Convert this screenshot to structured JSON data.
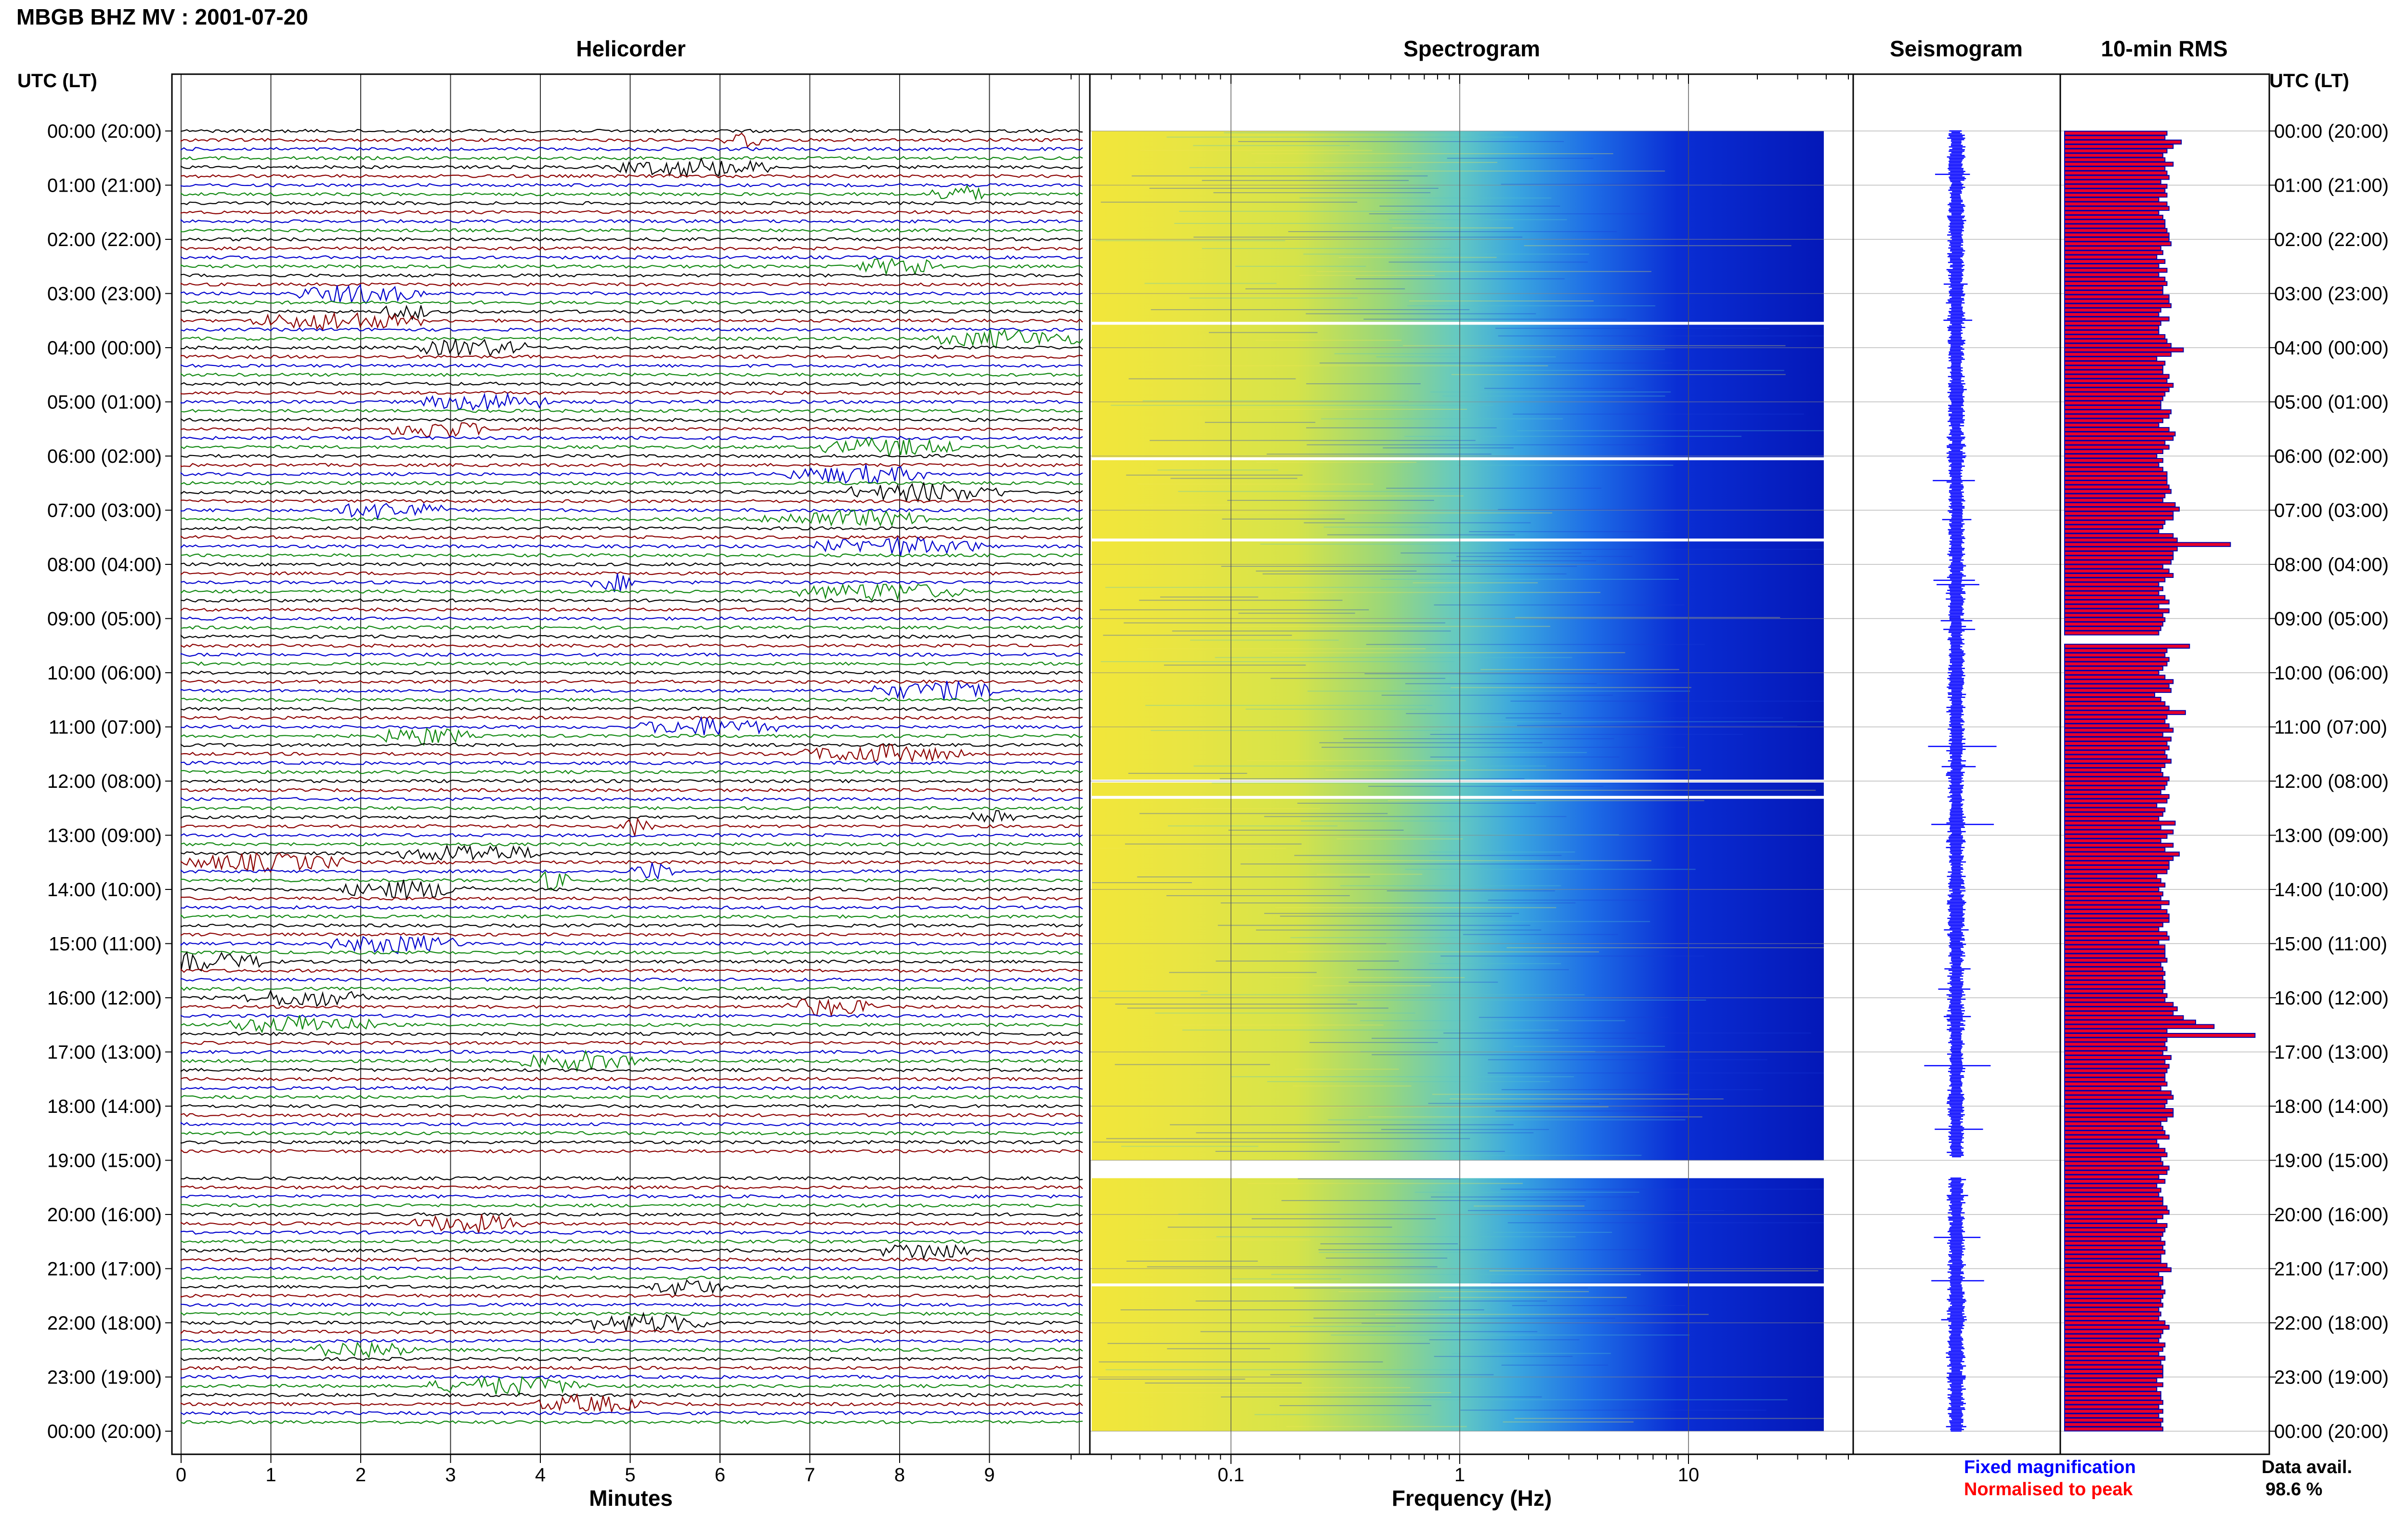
{
  "header": {
    "station_title": "MBGB BHZ MV : 2001-07-20",
    "utc_label": "UTC (LT)",
    "utc_label_right": "UTC (LT)"
  },
  "colors": {
    "trace_black": "#000000",
    "trace_red": "#8b0000",
    "trace_blue": "#0000cd",
    "trace_green": "#118811",
    "rms_bar_fill": "#e8002a",
    "rms_bar_edge": "#0000aa",
    "seismogram": "#0000ff",
    "spectrogram_low": "#f5e83a",
    "spectrogram_mid": "#5fd0c8",
    "spectrogram_high": "#0a14c8"
  },
  "chart_data": [
    {
      "type": "line",
      "panel": "helicorder",
      "title": "Helicorder",
      "xlabel": "Minutes",
      "xlim": [
        0,
        10
      ],
      "x_ticks": [
        "0",
        "1",
        "2",
        "3",
        "4",
        "5",
        "6",
        "7",
        "8",
        "9"
      ],
      "y_tick_labels": [
        "00:00 (20:00)",
        "01:00 (21:00)",
        "02:00 (22:00)",
        "03:00 (23:00)",
        "04:00 (00:00)",
        "05:00 (01:00)",
        "06:00 (02:00)",
        "07:00 (03:00)",
        "08:00 (04:00)",
        "09:00 (05:00)",
        "10:00 (06:00)",
        "11:00 (07:00)",
        "12:00 (08:00)",
        "13:00 (09:00)",
        "14:00 (10:00)",
        "15:00 (11:00)",
        "16:00 (12:00)",
        "17:00 (13:00)",
        "18:00 (14:00)",
        "19:00 (15:00)",
        "20:00 (16:00)",
        "21:00 (17:00)",
        "22:00 (18:00)",
        "23:00 (19:00)",
        "00:00 (20:00)"
      ],
      "rows_per_hour": 6,
      "row_color_cycle": [
        "black",
        "red",
        "blue",
        "green"
      ],
      "data_gap_hours": [
        [
          19.0,
          19.33
        ]
      ],
      "grid": true
    },
    {
      "type": "heatmap",
      "panel": "spectrogram",
      "title": "Spectrogram",
      "xlabel": "Frequency (Hz)",
      "x_scale": "log",
      "xlim": [
        0.02,
        50
      ],
      "x_ticks": [
        "0.1",
        "1",
        "10"
      ],
      "colormap": "yellow-cyan-blue (low to high frequency)",
      "white_gap_lines_hours": [
        3.55,
        6.05,
        7.55,
        12.0,
        12.3,
        21.3
      ],
      "grid": true
    },
    {
      "type": "line",
      "panel": "seismogram",
      "title": "Seismogram",
      "note": "Fixed magnification",
      "grid": true
    },
    {
      "type": "bar",
      "panel": "rms",
      "title": "10-min RMS",
      "orientation": "horizontal",
      "note": "Normalised to peak",
      "xlim": [
        0,
        1
      ],
      "values_relative_to_peak": [
        0.5,
        0.49,
        0.57,
        0.53,
        0.5,
        0.48,
        0.49,
        0.53,
        0.49,
        0.5,
        0.51,
        0.47,
        0.5,
        0.49,
        0.5,
        0.46,
        0.5,
        0.51,
        0.46,
        0.48,
        0.49,
        0.49,
        0.5,
        0.51,
        0.51,
        0.52,
        0.47,
        0.48,
        0.45,
        0.49,
        0.46,
        0.5,
        0.46,
        0.49,
        0.5,
        0.48,
        0.48,
        0.51,
        0.51,
        0.52,
        0.47,
        0.46,
        0.51,
        0.47,
        0.46,
        0.46,
        0.49,
        0.5,
        0.52,
        0.58,
        0.52,
        0.45,
        0.49,
        0.48,
        0.48,
        0.51,
        0.5,
        0.53,
        0.51,
        0.49,
        0.48,
        0.47,
        0.47,
        0.52,
        0.51,
        0.48,
        0.46,
        0.51,
        0.54,
        0.53,
        0.49,
        0.51,
        0.48,
        0.45,
        0.48,
        0.46,
        0.48,
        0.5,
        0.5,
        0.5,
        0.51,
        0.52,
        0.49,
        0.48,
        0.54,
        0.56,
        0.53,
        0.53,
        0.49,
        0.48,
        0.46,
        0.53,
        0.55,
        0.81,
        0.55,
        0.53,
        0.53,
        0.52,
        0.48,
        0.51,
        0.53,
        0.49,
        0.46,
        0.48,
        0.46,
        0.49,
        0.51,
        0.46,
        0.51,
        0.48,
        0.49,
        0.48,
        0.47,
        0.46,
        0.5,
        0.52,
        0.61,
        0.5,
        0.49,
        0.51,
        0.5,
        0.48,
        0.46,
        0.49,
        0.53,
        0.51,
        0.52,
        0.44,
        0.47,
        0.49,
        0.51,
        0.59,
        0.5,
        0.49,
        0.51,
        0.53,
        0.48,
        0.52,
        0.5,
        0.51,
        0.49,
        0.5,
        0.52,
        0.49,
        0.47,
        0.48,
        0.51,
        0.5,
        0.49,
        0.47,
        0.51,
        0.5,
        0.45,
        0.49,
        0.48,
        0.46,
        0.54,
        0.47,
        0.53,
        0.5,
        0.47,
        0.53,
        0.49,
        0.56,
        0.53,
        0.51,
        0.51,
        0.5,
        0.45,
        0.47,
        0.49,
        0.46,
        0.48,
        0.47,
        0.51,
        0.47,
        0.5,
        0.51,
        0.51,
        0.48,
        0.46,
        0.5,
        0.51,
        0.46,
        0.49,
        0.49,
        0.49,
        0.5,
        0.47,
        0.48,
        0.49,
        0.48,
        0.49,
        0.49,
        0.48,
        0.5,
        0.49,
        0.53,
        0.55,
        0.53,
        0.58,
        0.64,
        0.73,
        0.5,
        0.93,
        0.5,
        0.49,
        0.5,
        0.48,
        0.52,
        0.49,
        0.51,
        0.5,
        0.49,
        0.49,
        0.5,
        0.47,
        0.52,
        0.53,
        0.5,
        0.49,
        0.53,
        0.53,
        0.5,
        0.47,
        0.48,
        0.49,
        0.51,
        0.45,
        0.46,
        0.49,
        0.5,
        0.47,
        0.48,
        0.51,
        0.5,
        0.46,
        0.49,
        0.45,
        0.47,
        0.46,
        0.48,
        0.48,
        0.5,
        0.51,
        0.48,
        0.45,
        0.5,
        0.49,
        0.48,
        0.47,
        0.49,
        0.48,
        0.49,
        0.47,
        0.47,
        0.5,
        0.52,
        0.46,
        0.48,
        0.48,
        0.47,
        0.49,
        0.48,
        0.47,
        0.48,
        0.46,
        0.47,
        0.46,
        0.49,
        0.51,
        0.48,
        0.47,
        0.46,
        0.49,
        0.48,
        0.46,
        0.49,
        0.47,
        0.48,
        0.48,
        0.48,
        0.45,
        0.48,
        0.45,
        0.47,
        0.47,
        0.48,
        0.46,
        0.48,
        0.46,
        0.48,
        0.47,
        0.48
      ],
      "grid": true
    }
  ],
  "panels": {
    "helicorder_title": "Helicorder",
    "spectrogram_title": "Spectrogram",
    "seismogram_title": "Seismogram",
    "rms_title": "10-min RMS",
    "helicorder_xlabel": "Minutes",
    "spectrogram_xlabel": "Frequency (Hz)"
  },
  "legend": {
    "fixed": "Fixed magnification",
    "normalised": "Normalised to peak",
    "data_avail_label": "Data avail.",
    "data_avail_value": "98.6 %"
  }
}
